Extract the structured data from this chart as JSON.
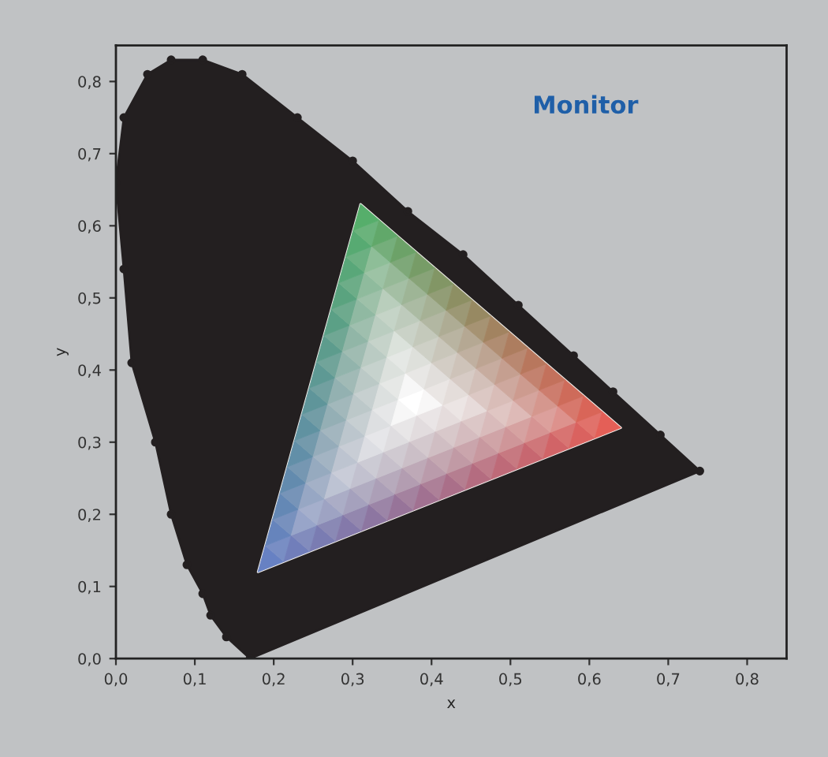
{
  "chart_data": {
    "type": "area",
    "xlabel": "x",
    "ylabel": "y",
    "annotations": [
      "Monitor"
    ],
    "xlim": [
      0,
      0.85
    ],
    "ylim": [
      0,
      0.85
    ],
    "xticks": [
      {
        "value": 0,
        "label": "0,0"
      },
      {
        "value": 0.1,
        "label": "0,1"
      },
      {
        "value": 0.2,
        "label": "0,2"
      },
      {
        "value": 0.3,
        "label": "0,3"
      },
      {
        "value": 0.4,
        "label": "0,4"
      },
      {
        "value": 0.5,
        "label": "0,5"
      },
      {
        "value": 0.6,
        "label": "0,6"
      },
      {
        "value": 0.7,
        "label": "0,7"
      },
      {
        "value": 0.8,
        "label": "0,8"
      }
    ],
    "yticks": [
      {
        "value": 0,
        "label": "0,0"
      },
      {
        "value": 0.1,
        "label": "0,1"
      },
      {
        "value": 0.2,
        "label": "0,2"
      },
      {
        "value": 0.3,
        "label": "0,3"
      },
      {
        "value": 0.4,
        "label": "0,4"
      },
      {
        "value": 0.5,
        "label": "0,5"
      },
      {
        "value": 0.6,
        "label": "0,6"
      },
      {
        "value": 0.7,
        "label": "0,7"
      },
      {
        "value": 0.8,
        "label": "0,8"
      }
    ],
    "grid": false,
    "legend": false,
    "series": [
      {
        "color": "#231f20",
        "marker": "circle",
        "x": [
          0.17,
          0.14,
          0.12,
          0.11,
          0.09,
          0.07,
          0.05,
          0.02,
          0.01,
          0.0,
          0.01,
          0.04,
          0.07,
          0.11,
          0.16,
          0.23,
          0.3,
          0.37,
          0.44,
          0.51,
          0.58,
          0.63,
          0.69,
          0.74
        ],
        "values": [
          0.0,
          0.03,
          0.06,
          0.09,
          0.13,
          0.2,
          0.3,
          0.41,
          0.54,
          0.66,
          0.75,
          0.81,
          0.83,
          0.83,
          0.81,
          0.75,
          0.69,
          0.62,
          0.56,
          0.49,
          0.42,
          0.37,
          0.31,
          0.26
        ]
      },
      {
        "type": "area",
        "color": "#f4f2ee",
        "colors": [
          "#e8463c",
          "#3aa655",
          "#4f6fc0"
        ],
        "x": [
          0.64,
          0.31,
          0.18
        ],
        "values": [
          0.32,
          0.63,
          0.12
        ]
      }
    ]
  }
}
